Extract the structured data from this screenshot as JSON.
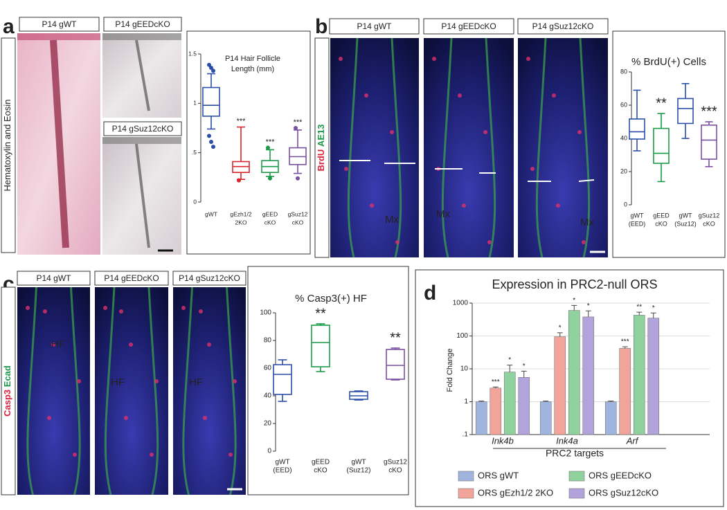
{
  "figure": {
    "panels": [
      {
        "letter": "a",
        "image_labels": [
          "P14 gWT",
          "P14 gEEDcKO",
          "P14 gSuz12cKO"
        ],
        "side_label": [
          {
            "text": "Hematoxylin and Eosin",
            "color": "#222222"
          }
        ]
      },
      {
        "letter": "b",
        "image_labels": [
          "P14 gWT",
          "P14 gEEDcKO",
          "P14 gSuz12cKO"
        ],
        "side_label": [
          {
            "text": "BrdU",
            "color": "#e0203a"
          },
          {
            "text": "AE13",
            "color": "#1a9a48"
          }
        ],
        "image_texts": [
          "Mx",
          "Mx",
          "Mx"
        ]
      },
      {
        "letter": "c",
        "image_labels": [
          "P14 gWT",
          "P14 gEEDcKO",
          "P14 gSuz12cKO"
        ],
        "side_label": [
          {
            "text": "Casp3",
            "color": "#e0203a"
          },
          {
            "text": "Ecad",
            "color": "#1a9a48"
          }
        ],
        "image_texts": [
          "HF",
          "HF",
          "HF"
        ]
      },
      {
        "letter": "d"
      }
    ]
  },
  "chart_data": [
    {
      "type": "box",
      "title": [
        "P14 Hair Follicle",
        "Length (mm)"
      ],
      "categories": [
        [
          "gWT"
        ],
        [
          "gEzh1/2",
          "2KO"
        ],
        [
          "gEED",
          "cKO"
        ],
        [
          "gSuz12",
          "cKO"
        ]
      ],
      "ylim": [
        0,
        1.5
      ],
      "yticks": [
        0,
        {
          "value": 0.5,
          "label": ".5"
        },
        1,
        1.5
      ],
      "boxes": [
        {
          "color": "#2b4fa8",
          "min": 0.74,
          "q1": 0.87,
          "median": 0.98,
          "q3": 1.16,
          "max": 1.3,
          "outliers": [
            1.39,
            1.36,
            1.33,
            0.67,
            0.61,
            0.56
          ]
        },
        {
          "color": "#d8242a",
          "min": 0.23,
          "q1": 0.3,
          "median": 0.36,
          "q3": 0.41,
          "max": 0.76,
          "outliers": [
            0.22
          ],
          "annotation": "***"
        },
        {
          "color": "#1a9a48",
          "min": 0.26,
          "q1": 0.3,
          "median": 0.36,
          "q3": 0.42,
          "max": 0.53,
          "outliers": [
            0.55,
            0.24
          ],
          "annotation": "***"
        },
        {
          "color": "#7a4fa0",
          "min": 0.29,
          "q1": 0.38,
          "median": 0.46,
          "q3": 0.55,
          "max": 0.73,
          "outliers": [
            0.75,
            0.24
          ],
          "annotation": "***"
        }
      ]
    },
    {
      "type": "box",
      "title": [
        "% BrdU(+) Cells"
      ],
      "categories": [
        [
          "gWT",
          "(EED)"
        ],
        [
          "gEED",
          "cKO"
        ],
        [
          "gWT",
          "(Suz12)"
        ],
        [
          "gSuz12",
          "cKO"
        ]
      ],
      "ylim": [
        0,
        80
      ],
      "yticks": [
        0,
        20,
        40,
        60,
        80
      ],
      "boxes": [
        {
          "color": "#2b4fa8",
          "min": 32.5,
          "q1": 39.6,
          "median": 44,
          "q3": 51.7,
          "max": 69
        },
        {
          "color": "#1a9a48",
          "min": 14,
          "q1": 25,
          "median": 31,
          "q3": 46,
          "max": 55,
          "annotation": "**"
        },
        {
          "color": "#2b4fa8",
          "min": 40,
          "q1": 49,
          "median": 58,
          "q3": 64,
          "max": 73
        },
        {
          "color": "#7a4fa0",
          "min": 23,
          "q1": 27.5,
          "median": 39,
          "q3": 48,
          "max": 50,
          "annotation": "***"
        }
      ]
    },
    {
      "type": "box",
      "title": [
        "% Casp3(+) HF"
      ],
      "categories": [
        [
          "gWT",
          "(EED)"
        ],
        [
          "gEED",
          "cKO"
        ],
        [
          "gWT",
          "(Suz12)"
        ],
        [
          "gSuz12",
          "cKO"
        ]
      ],
      "ylim": [
        0,
        100
      ],
      "yticks": [
        0,
        20,
        40,
        60,
        80,
        100
      ],
      "boxes": [
        {
          "color": "#2b4fa8",
          "min": 36,
          "q1": 41,
          "median": 55.5,
          "q3": 62.5,
          "max": 66
        },
        {
          "color": "#1a9a48",
          "min": 57.5,
          "q1": 61,
          "median": 78.5,
          "q3": 91,
          "max": 92,
          "annotation": "**"
        },
        {
          "color": "#2b4fa8",
          "min": 37,
          "q1": 37.5,
          "median": 40,
          "q3": 43,
          "max": 43.5
        },
        {
          "color": "#7a4fa0",
          "min": 51.5,
          "q1": 52,
          "median": 62,
          "q3": 73.5,
          "max": 74.5,
          "annotation": "**"
        }
      ]
    },
    {
      "type": "bar",
      "title": "Expression in PRC2-null ORS",
      "ylabel": "Fold Change",
      "xlabel": "PRC2 targets",
      "log_scale": true,
      "grid": true,
      "categories": [
        "Ink4b",
        "Ink4a",
        "Arf"
      ],
      "ylim": [
        0.1,
        1000
      ],
      "yticks": [
        {
          "value": 0.1,
          "label": ".1"
        },
        1,
        10,
        100,
        1000
      ],
      "series": [
        {
          "name": "ORS gWT",
          "color": "#9fb4de",
          "values": [
            1,
            1,
            1
          ],
          "errors": [
            0.05,
            0.05,
            0.05
          ],
          "annotations": [
            null,
            null,
            null
          ]
        },
        {
          "name": "ORS gEzh1/2 2KO",
          "color": "#f2a39a",
          "values": [
            2.6,
            95,
            42
          ],
          "errors": [
            0.2,
            30,
            5
          ],
          "annotations": [
            "***",
            "*",
            "***"
          ]
        },
        {
          "name": "ORS gEEDcKO",
          "color": "#8fd29e",
          "values": [
            8,
            600,
            430
          ],
          "errors": [
            5,
            250,
            100
          ],
          "annotations": [
            "*",
            "*",
            "**"
          ]
        },
        {
          "name": "ORS gSuz12cKO",
          "color": "#b2a3dc",
          "values": [
            5.5,
            380,
            350
          ],
          "errors": [
            3,
            200,
            150
          ],
          "annotations": [
            "*",
            "*",
            "*"
          ]
        }
      ]
    }
  ]
}
